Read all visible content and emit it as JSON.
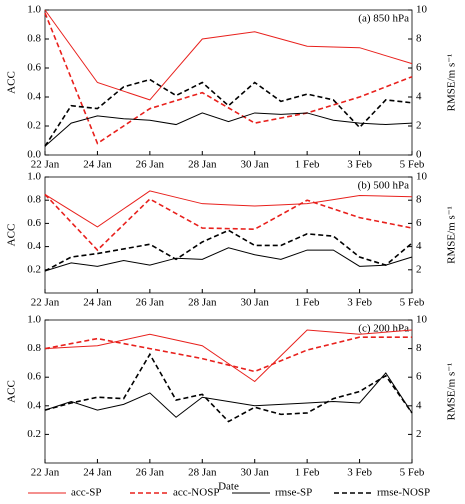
{
  "chart_data": [
    {
      "type": "line",
      "annotation": "(a)  850 hPa",
      "ylabel": "ACC",
      "y2label": "RMSE/m s⁻¹",
      "categories": [
        "22 Jan",
        null,
        "24 Jan",
        null,
        "26 Jan",
        null,
        "28 Jan",
        null,
        "30 Jan",
        null,
        "1 Feb",
        null,
        "3 Feb",
        null,
        "5 Feb"
      ],
      "ylim": [
        0,
        1
      ],
      "yticks": [
        {
          "value": 0,
          "label": "0.0"
        },
        {
          "value": 0.2,
          "label": "0.2"
        },
        {
          "value": 0.4,
          "label": "0.4"
        },
        {
          "value": 0.6,
          "label": "0.6"
        },
        {
          "value": 0.8,
          "label": "0.8"
        },
        {
          "value": 1,
          "label": "1.0"
        }
      ],
      "y2lim": [
        0,
        10
      ],
      "y2ticks": [
        0,
        2,
        4,
        6,
        8,
        10
      ],
      "series": [
        {
          "name": "acc-SP",
          "color": "#e8201c",
          "dash": false,
          "values": [
            1.0,
            0.75,
            0.5,
            0.44,
            0.38,
            0.59,
            0.8,
            0.825,
            0.85,
            0.8,
            0.75,
            0.745,
            0.74,
            0.685,
            0.63
          ]
        },
        {
          "name": "acc-NOSP",
          "color": "#e8201c",
          "dash": true,
          "values": [
            0.98,
            0.53,
            0.08,
            0.2,
            0.32,
            0.375,
            0.43,
            0.325,
            0.22,
            0.255,
            0.29,
            0.345,
            0.4,
            0.47,
            0.54
          ]
        },
        {
          "name": "rmse-SP",
          "color": "#000000",
          "dash": false,
          "axis": "y2",
          "values": [
            0.6,
            2.2,
            2.7,
            2.5,
            2.4,
            2.1,
            2.9,
            2.3,
            2.9,
            2.8,
            2.9,
            2.4,
            2.2,
            2.1,
            2.2
          ]
        },
        {
          "name": "rmse-NOSP",
          "color": "#000000",
          "dash": true,
          "axis": "y2",
          "values": [
            0.6,
            3.4,
            3.2,
            4.7,
            5.2,
            4.1,
            5.0,
            3.4,
            5.0,
            3.7,
            4.2,
            3.8,
            1.9,
            3.8,
            3.6
          ]
        }
      ]
    },
    {
      "type": "line",
      "annotation": "(b)  500 hPa",
      "ylabel": "ACC",
      "y2label": "RMSE/m s⁻¹",
      "categories": [
        "22 Jan",
        null,
        "24 Jan",
        null,
        "26 Jan",
        null,
        "28 Jan",
        null,
        "30 Jan",
        null,
        "1 Feb",
        null,
        "3 Feb",
        null,
        "5 Feb"
      ],
      "ylim": [
        0,
        1
      ],
      "yticks": [
        {
          "value": 0.2,
          "label": "0.2"
        },
        {
          "value": 0.4,
          "label": "0.4"
        },
        {
          "value": 0.6,
          "label": "0.6"
        },
        {
          "value": 0.8,
          "label": "0.8"
        },
        {
          "value": 1,
          "label": "1.0"
        }
      ],
      "y2lim": [
        0,
        10
      ],
      "y2ticks": [
        2,
        4,
        6,
        8,
        10
      ],
      "series": [
        {
          "name": "acc-SP",
          "color": "#e8201c",
          "dash": false,
          "values": [
            0.85,
            0.71,
            0.57,
            0.725,
            0.88,
            0.825,
            0.77,
            0.76,
            0.75,
            0.76,
            0.77,
            0.805,
            0.84,
            0.835,
            0.83
          ]
        },
        {
          "name": "acc-NOSP",
          "color": "#e8201c",
          "dash": true,
          "values": [
            0.85,
            0.61,
            0.37,
            0.59,
            0.81,
            0.685,
            0.56,
            0.555,
            0.55,
            0.675,
            0.8,
            0.725,
            0.65,
            0.605,
            0.56
          ]
        },
        {
          "name": "rmse-SP",
          "color": "#000000",
          "dash": false,
          "axis": "y2",
          "values": [
            1.9,
            2.6,
            2.3,
            2.8,
            2.4,
            3.0,
            2.9,
            3.9,
            3.3,
            2.9,
            3.7,
            3.7,
            2.3,
            2.4,
            3.1
          ]
        },
        {
          "name": "rmse-NOSP",
          "color": "#000000",
          "dash": true,
          "axis": "y2",
          "values": [
            1.9,
            3.1,
            3.4,
            3.8,
            4.2,
            2.9,
            4.4,
            5.4,
            4.1,
            4.1,
            5.1,
            4.9,
            3.1,
            2.4,
            4.3
          ]
        }
      ]
    },
    {
      "type": "line",
      "annotation": "(c)  200 hPa",
      "ylabel": "ACC",
      "y2label": "RMSE/m s⁻¹",
      "xlabel": "Date",
      "categories": [
        "22 Jan",
        null,
        "24 Jan",
        null,
        "26 Jan",
        null,
        "28 Jan",
        null,
        "30 Jan",
        null,
        "1 Feb",
        null,
        "3 Feb",
        null,
        "5 Feb"
      ],
      "ylim": [
        0,
        1
      ],
      "yticks": [
        {
          "value": 0.2,
          "label": "0.2"
        },
        {
          "value": 0.4,
          "label": "0.4"
        },
        {
          "value": 0.6,
          "label": "0.6"
        },
        {
          "value": 0.8,
          "label": "0.8"
        },
        {
          "value": 1,
          "label": "1.0"
        }
      ],
      "y2lim": [
        0,
        10
      ],
      "y2ticks": [
        2,
        4,
        6,
        8,
        10
      ],
      "series": [
        {
          "name": "acc-SP",
          "color": "#e8201c",
          "dash": false,
          "values": [
            0.8,
            0.81,
            0.82,
            0.86,
            0.9,
            0.86,
            0.82,
            0.695,
            0.57,
            0.75,
            0.93,
            0.915,
            0.9,
            0.915,
            0.93
          ]
        },
        {
          "name": "acc-NOSP",
          "color": "#e8201c",
          "dash": true,
          "values": [
            0.8,
            0.835,
            0.87,
            0.835,
            0.8,
            0.765,
            0.73,
            0.685,
            0.64,
            0.715,
            0.79,
            0.835,
            0.88,
            0.88,
            0.88
          ]
        },
        {
          "name": "rmse-SP",
          "color": "#000000",
          "dash": false,
          "axis": "y2",
          "values": [
            3.7,
            4.3,
            3.7,
            4.1,
            4.9,
            3.2,
            4.6,
            4.3,
            4.0,
            4.1,
            4.2,
            4.3,
            4.2,
            6.3,
            3.5
          ]
        },
        {
          "name": "rmse-NOSP",
          "color": "#000000",
          "dash": true,
          "axis": "y2",
          "values": [
            3.7,
            4.2,
            4.6,
            4.5,
            7.6,
            4.4,
            4.8,
            2.9,
            3.9,
            3.4,
            3.5,
            4.5,
            5.0,
            6.1,
            3.5
          ]
        }
      ]
    }
  ]
}
